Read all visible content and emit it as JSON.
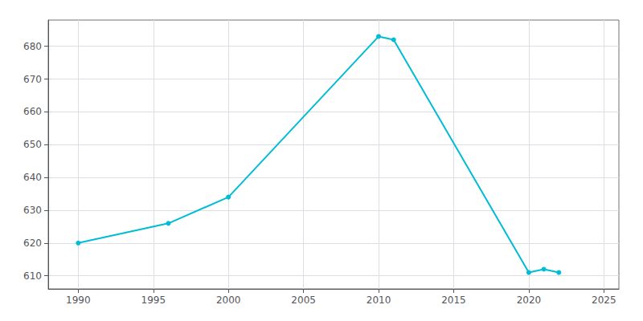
{
  "chart_data": {
    "type": "line",
    "x": [
      1990,
      1996,
      2000,
      2010,
      2011,
      2020,
      2021,
      2022
    ],
    "values": [
      620,
      626,
      634,
      683,
      682,
      611,
      612,
      611
    ],
    "color": "#00bcd4",
    "marker": "circle",
    "xlim": [
      1988,
      2026
    ],
    "ylim": [
      606,
      688
    ],
    "xticks": [
      1990,
      1995,
      2000,
      2005,
      2010,
      2015,
      2020,
      2025
    ],
    "yticks": [
      610,
      620,
      630,
      640,
      650,
      660,
      670,
      680
    ],
    "grid": true
  }
}
